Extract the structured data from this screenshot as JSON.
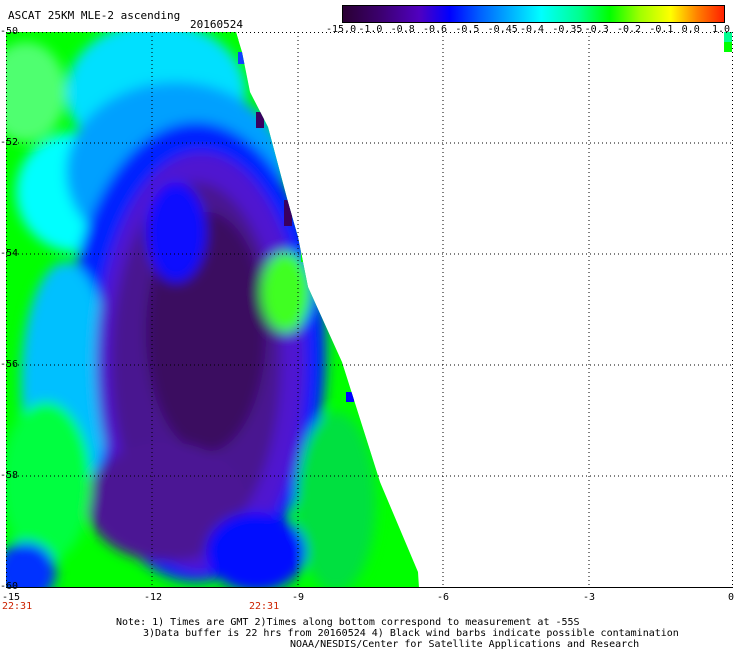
{
  "title": "ASCAT 25KM MLE-2 ascending",
  "date": "20160524",
  "colorbar": {
    "labels": [
      "-15.0",
      "-1.0",
      "-0.8",
      "-0.6",
      "-0.5",
      "-0.45",
      "-0.4",
      "-0.35",
      "-0.3",
      "-0.2",
      "-0.1",
      "0.0",
      "1.0"
    ],
    "colors": [
      "#2a0033",
      "#3c0070",
      "#5000c0",
      "#0000ff",
      "#0060ff",
      "#00b0ff",
      "#00ffff",
      "#00ff90",
      "#00ff00",
      "#a0ff00",
      "#ffff00",
      "#ff8000",
      "#ff2000"
    ]
  },
  "map": {
    "lon_ticks": [
      "-15",
      "-12",
      "-9",
      "-6",
      "-3",
      "0"
    ],
    "lat_ticks": [
      "-50",
      "-52",
      "-54",
      "-56",
      "-58",
      "-60"
    ],
    "time_labels": [
      "22:31",
      "22:31"
    ]
  },
  "notes": [
    "Note: 1) Times are GMT 2)Times along bottom correspond to measurement at -55S",
    "3)Data buffer is 22 hrs from 20160524 4) Black wind barbs indicate possible contamination",
    "NOAA/NESDIS/Center for Satellite Applications and Research"
  ]
}
